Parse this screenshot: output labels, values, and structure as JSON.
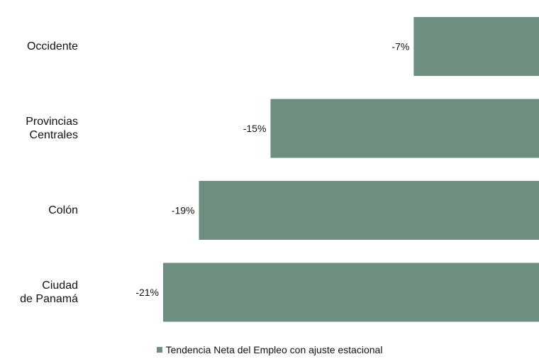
{
  "chart_data": {
    "type": "bar",
    "orientation": "horizontal",
    "categories": [
      "Occidente",
      "Provincias\nCentrales",
      "Colón",
      "Ciudad\nde Panamá"
    ],
    "series": [
      {
        "name": "Tendencia Neta del Empleo con ajuste estacional",
        "values": [
          -7,
          -15,
          -19,
          -21
        ],
        "value_labels": [
          "-7%",
          "-15%",
          "-19%",
          "-21%"
        ],
        "color": "#6e8e80"
      }
    ],
    "xlim": [
      -21,
      0
    ],
    "legend": "bottom-center",
    "grid": false
  }
}
